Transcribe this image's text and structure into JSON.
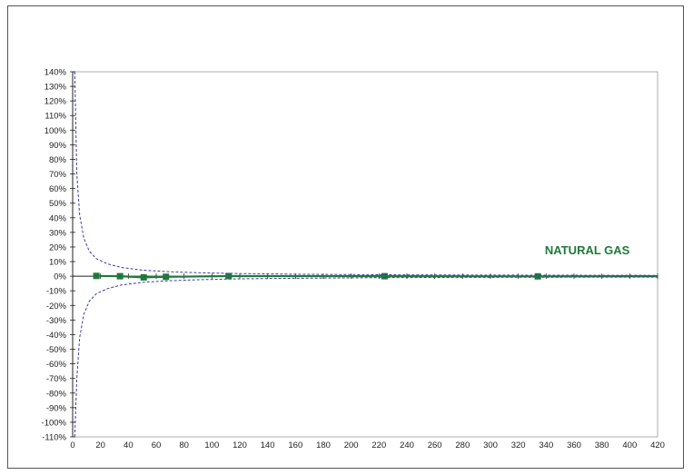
{
  "chart_data": {
    "type": "line",
    "annotations": [
      {
        "text": "NATURAL GAS",
        "x": 400,
        "y": 0.15
      }
    ],
    "x_axis": {
      "range": [
        0,
        420
      ],
      "ticks": [
        0,
        20,
        40,
        60,
        80,
        100,
        120,
        140,
        160,
        180,
        200,
        220,
        240,
        260,
        280,
        300,
        320,
        340,
        360,
        380,
        400,
        420
      ]
    },
    "y_axis": {
      "range": [
        -1.1,
        1.4
      ],
      "format": "percent",
      "ticks": [
        1.4,
        1.3,
        1.2,
        1.1,
        1.0,
        0.9,
        0.8,
        0.7,
        0.6,
        0.5,
        0.4,
        0.3,
        0.2,
        0.1,
        0.0,
        -0.1,
        -0.2,
        -0.3,
        -0.4,
        -0.5,
        -0.6,
        -0.7,
        -0.8,
        -0.9,
        -1.0,
        -1.1
      ]
    },
    "grid": false,
    "series": [
      {
        "role": "data",
        "color": "#1f7a3a",
        "marker": "square",
        "x": [
          17,
          34,
          51,
          67,
          112,
          224,
          334,
          420
        ],
        "y": [
          0.002,
          0.0,
          -0.008,
          -0.004,
          0.001,
          0.0,
          -0.001,
          0.0
        ]
      },
      {
        "role": "upper-envelope",
        "color": "#3b3f9e",
        "dashed": true,
        "x": [
          1.5,
          3,
          5,
          8,
          12,
          17,
          25,
          35,
          50,
          67,
          90,
          120,
          160,
          220,
          280,
          340,
          420
        ],
        "y": [
          1.4,
          0.7,
          0.42,
          0.26,
          0.17,
          0.12,
          0.085,
          0.06,
          0.042,
          0.032,
          0.024,
          0.018,
          0.014,
          0.01,
          0.008,
          0.007,
          0.006
        ]
      },
      {
        "role": "lower-envelope",
        "color": "#3b3f9e",
        "dashed": true,
        "x": [
          1.5,
          3,
          5,
          8,
          12,
          17,
          25,
          35,
          50,
          67,
          90,
          120,
          160,
          220,
          280,
          340,
          420
        ],
        "y": [
          -1.1,
          -0.7,
          -0.42,
          -0.26,
          -0.17,
          -0.12,
          -0.085,
          -0.06,
          -0.042,
          -0.032,
          -0.024,
          -0.018,
          -0.014,
          -0.01,
          -0.008,
          -0.007,
          -0.006
        ]
      }
    ]
  }
}
